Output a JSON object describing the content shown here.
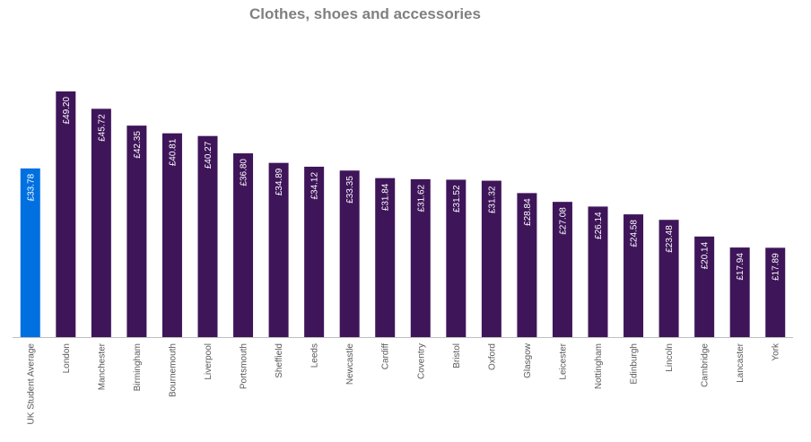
{
  "chart_data": {
    "type": "bar",
    "title": "Clothes, shoes and accessories",
    "xlabel": "",
    "ylabel": "",
    "ylim": [
      0,
      50
    ],
    "grid": false,
    "legend": "none",
    "categories": [
      "UK Student Average",
      "London",
      "Manchester",
      "Birmingham",
      "Bournemouth",
      "Liverpool",
      "Portsmouth",
      "Sheffield",
      "Leeds",
      "Newcastle",
      "Cardiff",
      "Coventry",
      "Bristol",
      "Oxford",
      "Glasgow",
      "Leicester",
      "Nottingham",
      "Edinburgh",
      "Lincoln",
      "Cambridge",
      "Lancaster",
      "York"
    ],
    "values": [
      33.78,
      49.2,
      45.72,
      42.35,
      40.81,
      40.27,
      36.8,
      34.89,
      34.12,
      33.35,
      31.84,
      31.62,
      31.52,
      31.32,
      28.84,
      27.08,
      26.14,
      24.58,
      23.48,
      20.14,
      17.94,
      17.89
    ],
    "data_labels": [
      "£33.78",
      "£49.20",
      "£45.72",
      "£42.35",
      "£40.81",
      "£40.27",
      "£36.80",
      "£34.89",
      "£34.12",
      "£33.35",
      "£31.84",
      "£31.62",
      "£31.52",
      "£31.32",
      "£28.84",
      "£27.08",
      "£26.14",
      "£24.58",
      "£23.48",
      "£20.14",
      "£17.94",
      "£17.89"
    ],
    "colors": {
      "highlight": "#0070e0",
      "bar": "#3f155a",
      "axis": "#bfbfbf",
      "title": "#808080",
      "label": "#595959"
    }
  }
}
